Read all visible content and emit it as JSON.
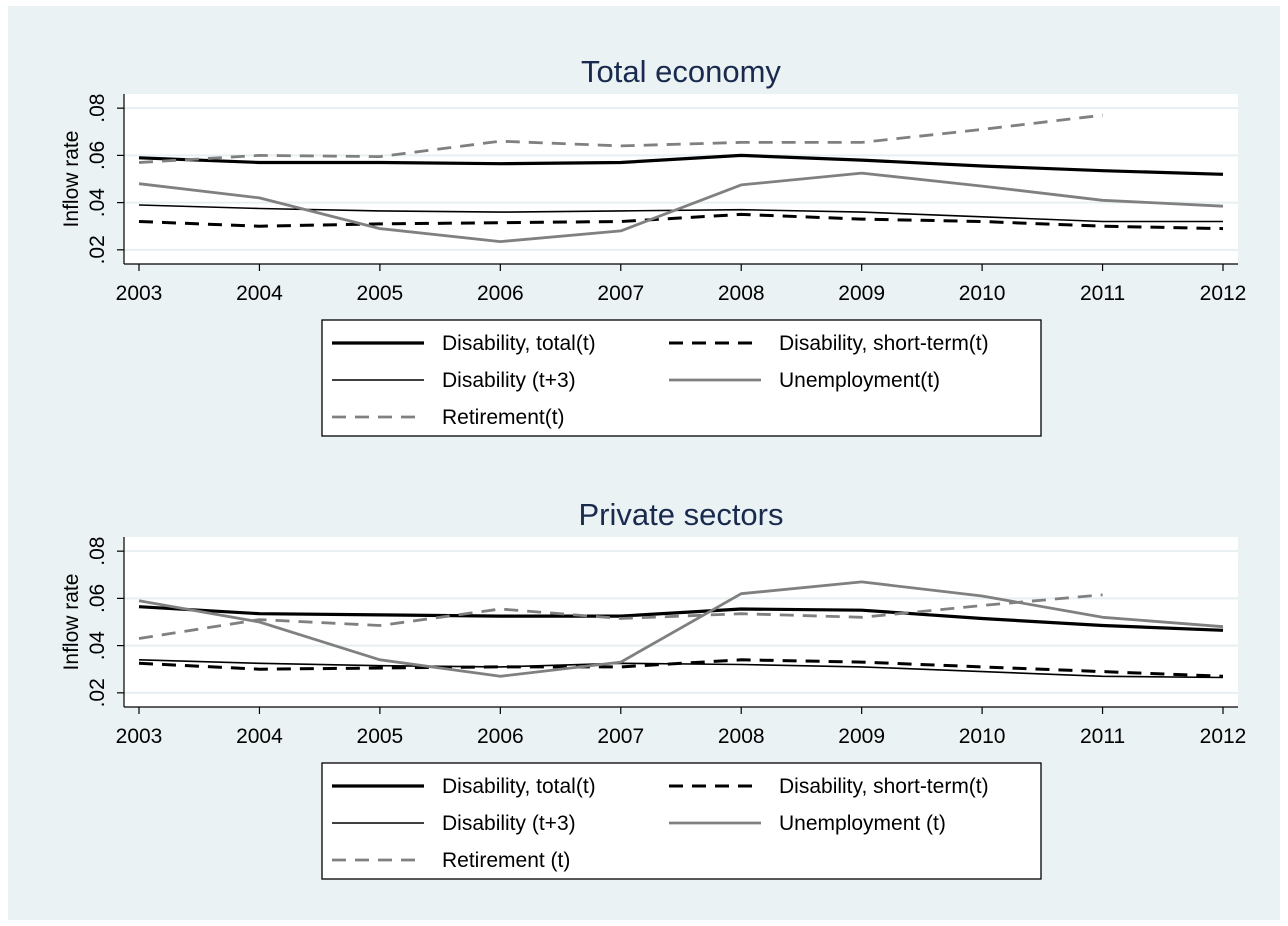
{
  "colors": {
    "page_bg": "#ffffff",
    "outer_bg": "#eaf2f3",
    "plot_bg": "#ffffff",
    "title": "#1a2a4f",
    "grid": "#e6eff1",
    "dark_series": "#000000",
    "gray_series": "#808080",
    "axis_text": "#000000"
  },
  "chart_data": [
    {
      "type": "line",
      "title": "Total economy",
      "xlabel": "",
      "ylabel": "Inflow rate",
      "x": [
        2003,
        2004,
        2005,
        2006,
        2007,
        2008,
        2009,
        2010,
        2011,
        2012
      ],
      "x_ticks": [
        "2003",
        "2004",
        "2005",
        "2006",
        "2007",
        "2008",
        "2009",
        "2010",
        "2011",
        "2012"
      ],
      "ylim": [
        0.014,
        0.086
      ],
      "y_ticks": [
        0.02,
        0.04,
        0.06,
        0.08
      ],
      "y_tick_labels": [
        ".02",
        ".04",
        ".06",
        ".08"
      ],
      "grid": true,
      "legend_position": "bottom",
      "series": [
        {
          "name": "Disability, total(t)",
          "style": "thick-solid-black",
          "values": [
            0.059,
            0.057,
            0.057,
            0.0565,
            0.057,
            0.06,
            0.058,
            0.0555,
            0.0535,
            0.052
          ]
        },
        {
          "name": "Disability, short-term(t)",
          "style": "thick-dashed-black",
          "values": [
            0.032,
            0.03,
            0.031,
            0.0315,
            0.032,
            0.035,
            0.033,
            0.032,
            0.03,
            0.029
          ]
        },
        {
          "name": "Disability (t+3)",
          "style": "thin-solid-black",
          "values": [
            0.039,
            0.0375,
            0.0365,
            0.036,
            0.0365,
            0.037,
            0.036,
            0.034,
            0.032,
            0.032
          ]
        },
        {
          "name": "Unemployment(t)",
          "style": "solid-gray",
          "values": [
            0.048,
            0.042,
            0.029,
            0.0235,
            0.028,
            0.0475,
            0.0525,
            0.047,
            0.041,
            0.0385
          ]
        },
        {
          "name": "Retirement(t)",
          "style": "dashed-gray",
          "values": [
            0.057,
            0.06,
            0.0595,
            0.066,
            0.064,
            0.0655,
            0.0655,
            0.071,
            0.077,
            null
          ]
        }
      ]
    },
    {
      "type": "line",
      "title": "Private sectors",
      "xlabel": "",
      "ylabel": "Inflow rate",
      "x": [
        2003,
        2004,
        2005,
        2006,
        2007,
        2008,
        2009,
        2010,
        2011,
        2012
      ],
      "x_ticks": [
        "2003",
        "2004",
        "2005",
        "2006",
        "2007",
        "2008",
        "2009",
        "2010",
        "2011",
        "2012"
      ],
      "ylim": [
        0.014,
        0.086
      ],
      "y_ticks": [
        0.02,
        0.04,
        0.06,
        0.08
      ],
      "y_tick_labels": [
        ".02",
        ".04",
        ".06",
        ".08"
      ],
      "grid": true,
      "legend_position": "bottom",
      "series": [
        {
          "name": "Disability, total(t)",
          "style": "thick-solid-black",
          "values": [
            0.0565,
            0.0535,
            0.053,
            0.0525,
            0.0525,
            0.0555,
            0.055,
            0.0515,
            0.0485,
            0.0465
          ]
        },
        {
          "name": "Disability, short-term(t)",
          "style": "thick-dashed-black",
          "values": [
            0.0325,
            0.03,
            0.0305,
            0.031,
            0.031,
            0.034,
            0.033,
            0.031,
            0.029,
            0.027
          ]
        },
        {
          "name": "Disability (t+3)",
          "style": "thin-solid-black",
          "values": [
            0.034,
            0.0325,
            0.0315,
            0.031,
            0.0325,
            0.032,
            0.031,
            0.029,
            0.027,
            0.0265
          ]
        },
        {
          "name": "Unemployment (t)",
          "style": "solid-gray",
          "values": [
            0.059,
            0.05,
            0.034,
            0.027,
            0.033,
            0.062,
            0.067,
            0.061,
            0.052,
            0.048
          ]
        },
        {
          "name": "Retirement (t)",
          "style": "dashed-gray",
          "values": [
            0.043,
            0.051,
            0.0485,
            0.0555,
            0.0515,
            0.0535,
            0.052,
            0.057,
            0.0615,
            null
          ]
        }
      ]
    }
  ]
}
